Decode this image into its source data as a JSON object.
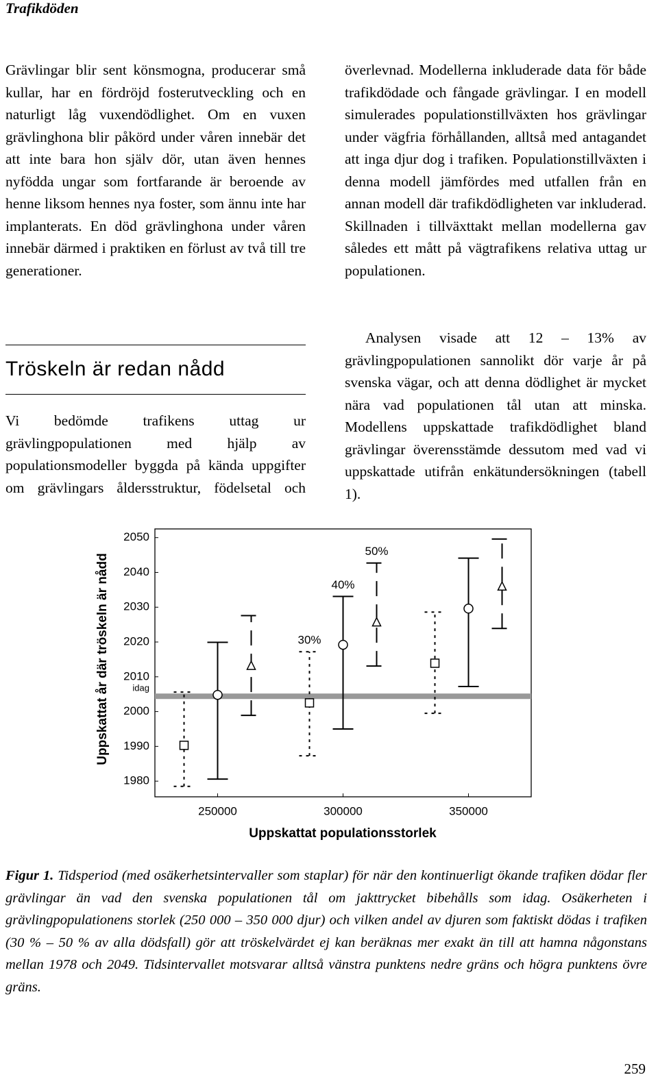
{
  "header": {
    "title": "Trafikdöden"
  },
  "text": {
    "left_intro": "Grävlingar blir sent könsmogna, producerar små kullar, har en fördröjd fosterutveckling och en naturligt låg vuxendödlighet. Om en vuxen grävlinghona blir påkörd under våren innebär det att inte bara hon själv dör, utan även hennes nyfödda ungar som fortfarande är beroende av henne liksom hennes nya foster, som ännu inte har implanterats. En död grävlinghona under våren innebär därmed i praktiken en förlust av två till tre generationer.",
    "heading": "Tröskeln är redan nådd",
    "left_body": "Vi bedömde trafikens uttag ur grävlingpopulationen med hjälp av populationsmodeller byggda på kända uppgifter om grävlingars åldersstruktur, födelsetal och",
    "right_body": [
      "överlevnad. Modellerna inkluderade data för både trafikdödade och fångade grävlingar. I en modell simulerades populationstillväxten hos grävlingar under vägfria förhållanden, alltså med antagandet att inga djur dog i trafiken. Populationstillväxten i denna modell jämfördes med utfallen från en annan modell där trafikdödligheten var inkluderad. Skillnaden i tillväxttakt mellan modellerna gav således ett mått på vägtrafikens relativa uttag ur populationen.",
      "Analysen visade att 12 – 13% av grävlingpopulationen sannolikt dör varje år på svenska vägar, och att denna dödlighet är mycket nära vad populationen tål utan att minska. Modellens uppskattade trafikdödlighet bland grävlingar överensstämde dessutom med vad vi uppskattade utifrån enkätundersökningen (tabell 1)."
    ]
  },
  "chart_data": {
    "type": "errorbar",
    "x_label": "Uppskattat populationsstorlek",
    "y_label": "Uppskattat år där tröskeln är nådd",
    "x": [
      250000,
      300000,
      350000
    ],
    "xlim": [
      225000,
      375000
    ],
    "xticks": [
      250000,
      300000,
      350000
    ],
    "ylim": [
      1975.5,
      2052.5
    ],
    "yticks": [
      1980,
      1990,
      2000,
      2010,
      2020,
      2030,
      2040,
      2050
    ],
    "reference_line": {
      "label": "idag",
      "value": 2004.4,
      "color": "#999999"
    },
    "series": [
      {
        "name": "30%",
        "color": "#000000",
        "marker": "square",
        "line_style": "dashed",
        "values": [
          1990.3,
          2002.5,
          2013.9
        ],
        "lower": [
          1978.5,
          1987.3,
          1999.5
        ],
        "upper": [
          2005.6,
          2017.2,
          2028.6
        ]
      },
      {
        "name": "40%",
        "color": "#000000",
        "marker": "circle",
        "line_style": "solid",
        "values": [
          2004.8,
          2019.2,
          2029.6
        ],
        "lower": [
          1980.6,
          1995.0,
          2007.2
        ],
        "upper": [
          2019.9,
          2033.1,
          2044.1
        ]
      },
      {
        "name": "50%",
        "color": "#000000",
        "marker": "triangle",
        "line_style": "long-dashed",
        "values": [
          2013.1,
          2025.6,
          2035.9
        ],
        "lower": [
          1998.9,
          2013.1,
          2023.9
        ],
        "upper": [
          2027.6,
          2042.7,
          2049.6
        ]
      }
    ]
  },
  "caption": {
    "label": "Figur 1.",
    "text": "Tidsperiod (med osäkerhetsintervaller som staplar) för när den kontinuerligt ökande trafiken dödar fler grävlingar än vad den svenska populationen tål om jakttrycket bibehålls som idag. Osäkerheten i grävlingpopulationens storlek (250 000 – 350 000 djur) och vilken andel av djuren som faktiskt dödas i trafiken (30 % – 50 % av alla dödsfall) gör att tröskelvärdet ej kan beräknas mer exakt än till att hamna någonstans mellan 1978 och 2049. Tidsintervallet motsvarar alltså vänstra punktens nedre gräns och högra punktens övre gräns."
  },
  "page_number": "259"
}
